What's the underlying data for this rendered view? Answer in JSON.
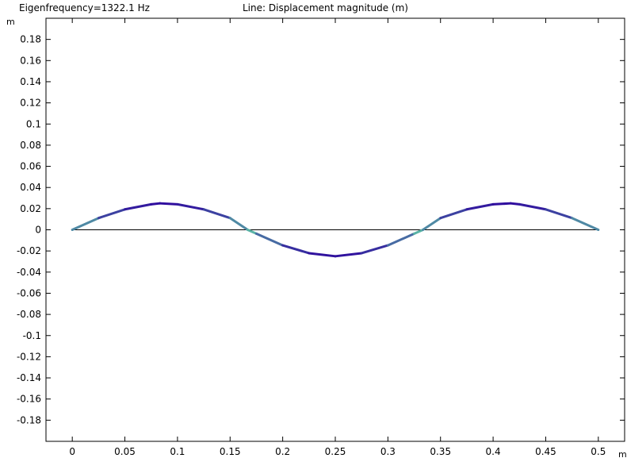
{
  "header": {
    "left_text": "Eigenfrequency=1322.1 Hz",
    "center_text": "Line: Displacement magnitude (m)"
  },
  "chart_data": {
    "type": "line",
    "xlim": [
      -0.025,
      0.525
    ],
    "ylim": [
      -0.2,
      0.2
    ],
    "x_unit": "m",
    "y_unit": "m",
    "x_ticks": [
      0,
      0.05,
      0.1,
      0.15,
      0.2,
      0.25,
      0.3,
      0.35,
      0.4,
      0.45,
      0.5
    ],
    "x_tick_labels": [
      "0",
      "0.05",
      "0.1",
      "0.15",
      "0.2",
      "0.25",
      "0.3",
      "0.35",
      "0.4",
      "0.45",
      "0.5"
    ],
    "y_ticks": [
      0.18,
      0.16,
      0.14,
      0.12,
      0.1,
      0.08,
      0.06,
      0.04,
      0.02,
      0,
      -0.02,
      -0.04,
      -0.06,
      -0.08,
      -0.1,
      -0.12,
      -0.14,
      -0.16,
      -0.18
    ],
    "y_tick_labels": [
      "0.18",
      "0.16",
      "0.14",
      "0.12",
      "0.1",
      "0.08",
      "0.06",
      "0.04",
      "0.02",
      "0",
      "-0.02",
      "-0.04",
      "-0.06",
      "-0.08",
      "-0.1",
      "-0.12",
      "-0.14",
      "-0.16",
      "-0.18"
    ],
    "grid": false,
    "series": [
      {
        "role": "undeformed",
        "color": "#000000",
        "x": [
          0,
          0.5
        ],
        "y": [
          0,
          0
        ]
      },
      {
        "role": "deformed-mode-shape",
        "color_low": "#66e0a8",
        "color_high": "#2e0a9e",
        "x": [
          0,
          0.025,
          0.05,
          0.075,
          0.0833,
          0.1,
          0.125,
          0.15,
          0.1667,
          0.175,
          0.2,
          0.225,
          0.25,
          0.275,
          0.3,
          0.325,
          0.3333,
          0.35,
          0.375,
          0.4,
          0.4167,
          0.425,
          0.45,
          0.475,
          0.5
        ],
        "y": [
          0,
          0.0111,
          0.0193,
          0.0241,
          0.025,
          0.0241,
          0.0193,
          0.0111,
          0,
          -0.0037,
          -0.0147,
          -0.0221,
          -0.025,
          -0.0221,
          -0.0147,
          -0.0037,
          0,
          0.0111,
          0.0193,
          0.0241,
          0.025,
          0.0241,
          0.0193,
          0.0111,
          0
        ]
      }
    ]
  }
}
